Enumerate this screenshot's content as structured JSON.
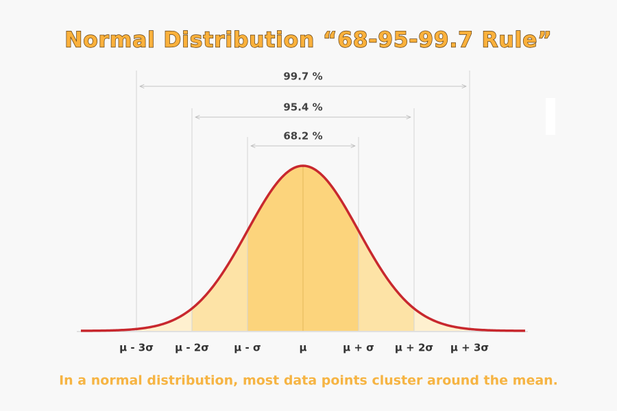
{
  "header": {
    "title": "Normal Distribution “68-95-99.7 Rule”"
  },
  "ranges": [
    {
      "label": "99.7 %"
    },
    {
      "label": "95.4 %"
    },
    {
      "label": "68.2 %"
    }
  ],
  "axis_labels": [
    "μ - 3σ",
    "μ - 2σ",
    "μ - σ",
    "μ",
    "μ + σ",
    "μ + 2σ",
    "μ + 3σ"
  ],
  "caption": "In a normal distribution, most data points cluster around the mean."
}
